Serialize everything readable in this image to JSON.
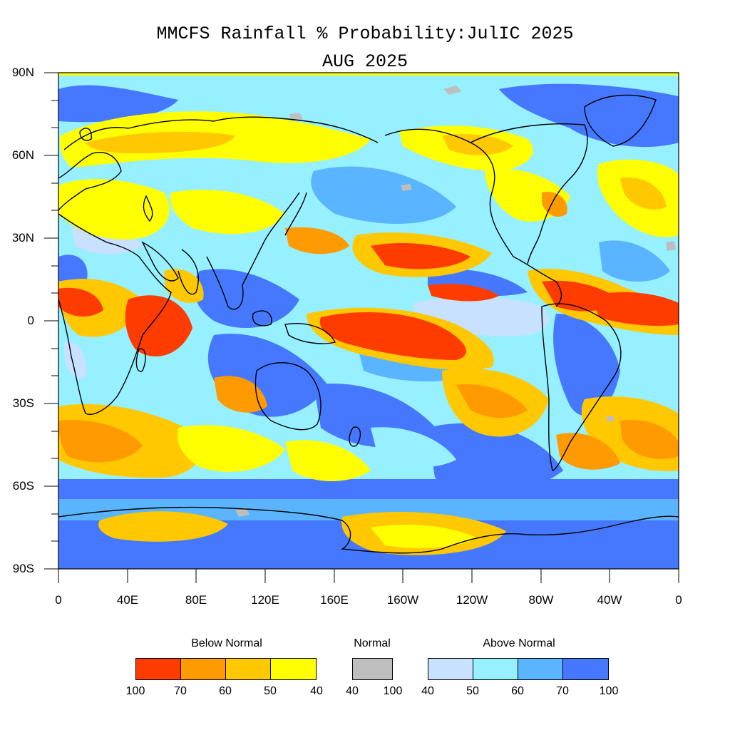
{
  "title": "MMCFS Rainfall % Probability:JulIC 2025",
  "subtitle": "AUG 2025",
  "y_axis_labels": [
    "90N",
    "60N",
    "30N",
    "0",
    "30S",
    "60S",
    "90S"
  ],
  "x_axis_labels": [
    "0",
    "40E",
    "80E",
    "120E",
    "160E",
    "160W",
    "120W",
    "80W",
    "40W",
    "0"
  ],
  "legend": {
    "below": {
      "title": "Below Normal",
      "colors": [
        "#ff3c00",
        "#ff9a00",
        "#ffc800",
        "#ffff00"
      ],
      "labels": [
        "100",
        "70",
        "60",
        "50",
        "40"
      ]
    },
    "normal": {
      "title": "Normal",
      "color": "#bebebe",
      "labels": [
        "40",
        "100"
      ]
    },
    "above": {
      "title": "Above Normal",
      "colors": [
        "#c8e1ff",
        "#96f0ff",
        "#5ab4ff",
        "#4678ff"
      ],
      "labels": [
        "40",
        "50",
        "60",
        "70",
        "100"
      ]
    }
  },
  "colors": {
    "below_100_70": "#ff3c00",
    "below_70_60": "#ff9a00",
    "below_60_50": "#ffc800",
    "below_50_40": "#ffff00",
    "normal": "#bebebe",
    "above_40_50": "#c8e1ff",
    "above_50_60": "#96f0ff",
    "above_60_70": "#5ab4ff",
    "above_70_100": "#4678ff"
  }
}
